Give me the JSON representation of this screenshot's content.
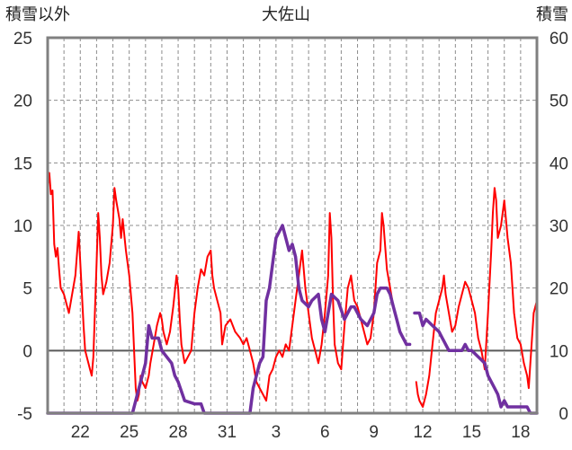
{
  "chart_data": {
    "type": "line",
    "title": "大佐山",
    "ylabel_left": "積雪以外",
    "ylabel_right": "積雪",
    "ylim_left": [
      -5,
      25
    ],
    "ylim_right": [
      0,
      60
    ],
    "yticks_left": [
      "25",
      "20",
      "15",
      "10",
      "5",
      "0",
      "-5"
    ],
    "yticks_right": [
      "60",
      "50",
      "40",
      "30",
      "20",
      "10",
      "0"
    ],
    "x_range_days": [
      20,
      50
    ],
    "xticks": [
      {
        "day": 22,
        "label": "22"
      },
      {
        "day": 25,
        "label": "25"
      },
      {
        "day": 28,
        "label": "28"
      },
      {
        "day": 31,
        "label": "31"
      },
      {
        "day": 34,
        "label": "3"
      },
      {
        "day": 37,
        "label": "6"
      },
      {
        "day": 40,
        "label": "9"
      },
      {
        "day": 43,
        "label": "12"
      },
      {
        "day": 46,
        "label": "15"
      },
      {
        "day": 49,
        "label": "18"
      }
    ],
    "grid": true,
    "colors": {
      "temperature": "#ff0000",
      "snow_depth": "#7030a0",
      "frame": "#808080",
      "zero_line": "#595959"
    },
    "series": [
      {
        "axis": "left",
        "color": "#ff0000",
        "segments": [
          [
            [
              20.0,
              13.0
            ],
            [
              20.1,
              14.2
            ],
            [
              20.2,
              12.5
            ],
            [
              20.3,
              12.8
            ],
            [
              20.4,
              8.5
            ],
            [
              20.5,
              7.5
            ],
            [
              20.6,
              8.2
            ],
            [
              20.7,
              6.5
            ],
            [
              20.8,
              5.0
            ],
            [
              21.0,
              4.5
            ],
            [
              21.2,
              3.5
            ],
            [
              21.3,
              3.0
            ],
            [
              21.5,
              4.5
            ],
            [
              21.7,
              6.0
            ],
            [
              21.9,
              9.5
            ],
            [
              22.0,
              7.0
            ],
            [
              22.2,
              2.0
            ],
            [
              22.3,
              0.0
            ],
            [
              22.5,
              -1.0
            ],
            [
              22.6,
              -1.5
            ],
            [
              22.7,
              -2.0
            ],
            [
              22.8,
              -0.5
            ],
            [
              23.0,
              7.0
            ],
            [
              23.1,
              11.0
            ],
            [
              23.2,
              9.0
            ],
            [
              23.3,
              6.0
            ],
            [
              23.4,
              4.5
            ],
            [
              23.6,
              5.5
            ],
            [
              23.8,
              7.0
            ],
            [
              24.0,
              10.0
            ],
            [
              24.1,
              13.0
            ],
            [
              24.2,
              12.0
            ],
            [
              24.4,
              10.5
            ],
            [
              24.5,
              9.0
            ],
            [
              24.6,
              10.5
            ],
            [
              24.8,
              8.0
            ],
            [
              25.0,
              6.0
            ],
            [
              25.2,
              3.0
            ],
            [
              25.3,
              0.0
            ],
            [
              25.4,
              -3.0
            ],
            [
              25.5,
              -4.0
            ],
            [
              25.6,
              -3.5
            ],
            [
              25.7,
              -2.0
            ],
            [
              25.8,
              -2.5
            ],
            [
              26.0,
              -3.0
            ],
            [
              26.2,
              -2.0
            ],
            [
              26.3,
              -1.0
            ],
            [
              26.5,
              0.5
            ],
            [
              26.7,
              2.0
            ],
            [
              26.9,
              3.0
            ],
            [
              27.0,
              2.5
            ],
            [
              27.1,
              1.5
            ],
            [
              27.3,
              0.5
            ],
            [
              27.5,
              1.5
            ],
            [
              27.7,
              3.5
            ],
            [
              27.9,
              6.0
            ],
            [
              28.0,
              5.0
            ],
            [
              28.1,
              2.5
            ],
            [
              28.2,
              0.5
            ],
            [
              28.4,
              -1.0
            ],
            [
              28.6,
              -0.5
            ],
            [
              28.8,
              0.0
            ],
            [
              29.0,
              3.0
            ],
            [
              29.2,
              5.0
            ],
            [
              29.4,
              6.5
            ],
            [
              29.6,
              6.0
            ],
            [
              29.8,
              7.5
            ],
            [
              30.0,
              8.0
            ],
            [
              30.1,
              6.0
            ],
            [
              30.2,
              5.0
            ],
            [
              30.4,
              4.0
            ],
            [
              30.6,
              3.0
            ],
            [
              30.7,
              0.5
            ],
            [
              30.9,
              2.0
            ],
            [
              31.2,
              2.5
            ],
            [
              31.5,
              1.5
            ],
            [
              31.8,
              1.0
            ],
            [
              32.0,
              0.5
            ],
            [
              32.2,
              1.0
            ],
            [
              32.4,
              0.0
            ],
            [
              32.6,
              -1.0
            ],
            [
              32.8,
              -2.5
            ],
            [
              33.0,
              -3.0
            ],
            [
              33.2,
              -3.5
            ],
            [
              33.4,
              -4.0
            ],
            [
              33.6,
              -2.0
            ],
            [
              33.8,
              -1.5
            ],
            [
              34.0,
              -0.5
            ],
            [
              34.2,
              0.0
            ],
            [
              34.4,
              -0.5
            ],
            [
              34.6,
              0.5
            ],
            [
              34.8,
              0.0
            ],
            [
              35.0,
              2.0
            ],
            [
              35.2,
              4.0
            ],
            [
              35.4,
              6.0
            ],
            [
              35.6,
              8.0
            ],
            [
              35.8,
              5.0
            ],
            [
              36.0,
              3.0
            ],
            [
              36.2,
              1.0
            ],
            [
              36.4,
              0.0
            ],
            [
              36.6,
              -1.0
            ],
            [
              36.8,
              0.5
            ],
            [
              37.0,
              3.0
            ],
            [
              37.2,
              6.0
            ],
            [
              37.3,
              11.0
            ],
            [
              37.4,
              9.0
            ],
            [
              37.5,
              4.0
            ],
            [
              37.6,
              0.5
            ],
            [
              37.8,
              -1.0
            ],
            [
              38.0,
              -1.5
            ],
            [
              38.2,
              2.0
            ],
            [
              38.4,
              5.0
            ],
            [
              38.6,
              6.0
            ],
            [
              38.8,
              4.0
            ],
            [
              39.0,
              3.5
            ],
            [
              39.2,
              2.5
            ],
            [
              39.4,
              1.5
            ],
            [
              39.6,
              0.5
            ],
            [
              39.8,
              1.0
            ],
            [
              40.0,
              3.0
            ],
            [
              40.2,
              7.0
            ],
            [
              40.4,
              8.0
            ],
            [
              40.5,
              11.0
            ],
            [
              40.6,
              10.0
            ],
            [
              40.8,
              6.5
            ],
            [
              41.0,
              5.0
            ],
            [
              41.2,
              3.5
            ],
            [
              41.4,
              2.5
            ]
          ],
          [
            [
              42.6,
              -2.5
            ],
            [
              42.7,
              -3.5
            ],
            [
              42.8,
              -4.0
            ],
            [
              43.0,
              -4.5
            ],
            [
              43.2,
              -3.5
            ],
            [
              43.4,
              -2.0
            ],
            [
              43.6,
              0.5
            ],
            [
              43.8,
              3.0
            ],
            [
              44.0,
              4.0
            ],
            [
              44.2,
              5.0
            ],
            [
              44.3,
              6.0
            ],
            [
              44.4,
              4.5
            ],
            [
              44.6,
              3.0
            ],
            [
              44.8,
              1.5
            ],
            [
              45.0,
              2.0
            ],
            [
              45.2,
              3.5
            ],
            [
              45.4,
              4.5
            ],
            [
              45.6,
              5.5
            ],
            [
              45.8,
              5.0
            ],
            [
              46.0,
              4.0
            ],
            [
              46.2,
              3.0
            ],
            [
              46.4,
              1.0
            ],
            [
              46.6,
              0.0
            ],
            [
              46.8,
              -1.5
            ],
            [
              47.0,
              3.0
            ],
            [
              47.2,
              8.0
            ],
            [
              47.3,
              11.0
            ],
            [
              47.4,
              13.0
            ],
            [
              47.5,
              12.0
            ],
            [
              47.6,
              9.0
            ],
            [
              47.8,
              10.0
            ],
            [
              48.0,
              12.0
            ],
            [
              48.2,
              9.0
            ],
            [
              48.4,
              7.0
            ],
            [
              48.6,
              3.0
            ],
            [
              48.8,
              1.0
            ],
            [
              49.0,
              0.5
            ],
            [
              49.2,
              -1.0
            ],
            [
              49.4,
              -2.0
            ],
            [
              49.5,
              -3.0
            ],
            [
              49.6,
              -1.0
            ],
            [
              49.8,
              3.0
            ],
            [
              50.0,
              4.0
            ]
          ]
        ]
      },
      {
        "axis": "right",
        "color": "#7030a0",
        "segments": [
          [
            [
              20.0,
              0
            ],
            [
              25.2,
              0
            ],
            [
              25.4,
              2
            ],
            [
              25.6,
              4
            ],
            [
              25.8,
              6
            ],
            [
              26.0,
              8
            ],
            [
              26.2,
              14
            ],
            [
              26.4,
              12
            ],
            [
              26.8,
              12
            ],
            [
              27.0,
              10
            ],
            [
              27.6,
              8
            ],
            [
              27.8,
              6
            ],
            [
              28.0,
              5
            ],
            [
              28.4,
              2
            ],
            [
              29.0,
              1.5
            ],
            [
              29.4,
              1.5
            ],
            [
              29.6,
              0
            ],
            [
              32.4,
              0
            ],
            [
              32.6,
              4
            ],
            [
              33.0,
              8
            ],
            [
              33.2,
              9
            ],
            [
              33.4,
              18
            ],
            [
              33.6,
              20
            ],
            [
              34.0,
              28
            ],
            [
              34.2,
              29
            ],
            [
              34.4,
              30
            ],
            [
              34.8,
              26
            ],
            [
              35.0,
              27
            ],
            [
              35.2,
              25
            ],
            [
              35.4,
              20
            ],
            [
              35.6,
              18
            ],
            [
              36.0,
              17
            ],
            [
              36.2,
              18
            ],
            [
              36.6,
              19
            ],
            [
              36.8,
              15
            ],
            [
              37.0,
              13
            ],
            [
              37.2,
              16
            ],
            [
              37.4,
              19
            ],
            [
              37.8,
              18
            ],
            [
              38.2,
              15
            ],
            [
              38.6,
              17
            ],
            [
              38.8,
              17
            ],
            [
              39.2,
              15
            ],
            [
              39.6,
              14
            ],
            [
              40.0,
              16
            ],
            [
              40.2,
              19
            ],
            [
              40.4,
              20
            ],
            [
              40.8,
              20
            ],
            [
              41.0,
              19
            ],
            [
              41.2,
              17
            ],
            [
              41.4,
              15
            ],
            [
              41.6,
              13
            ],
            [
              41.8,
              12
            ],
            [
              42.0,
              11
            ],
            [
              42.2,
              11
            ]
          ],
          [
            [
              42.5,
              16
            ],
            [
              42.8,
              16
            ],
            [
              43.0,
              14
            ],
            [
              43.2,
              15
            ],
            [
              43.6,
              14
            ],
            [
              44.0,
              13
            ],
            [
              44.2,
              12
            ],
            [
              44.4,
              11
            ],
            [
              44.6,
              10
            ],
            [
              45.0,
              10
            ],
            [
              45.4,
              10
            ],
            [
              45.6,
              11
            ],
            [
              45.8,
              10
            ],
            [
              46.0,
              10
            ],
            [
              46.4,
              9
            ],
            [
              46.8,
              8
            ],
            [
              47.0,
              6
            ],
            [
              47.4,
              4
            ],
            [
              47.6,
              3
            ],
            [
              47.8,
              1
            ],
            [
              48.0,
              2
            ],
            [
              48.2,
              1
            ],
            [
              49.0,
              1
            ],
            [
              49.4,
              1
            ],
            [
              49.6,
              0
            ],
            [
              50.0,
              0
            ]
          ]
        ]
      }
    ]
  }
}
